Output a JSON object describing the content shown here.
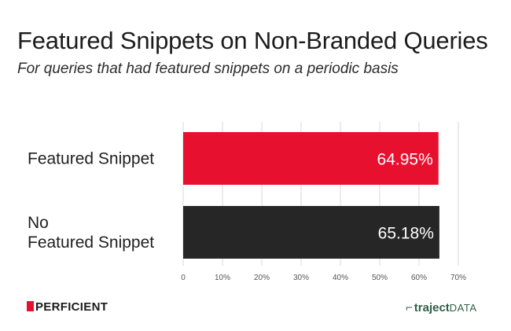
{
  "chart_data": {
    "type": "bar",
    "orientation": "horizontal",
    "title": "Featured Snippets on Non-Branded Queries",
    "subtitle": "For queries that had featured snippets on a periodic basis",
    "categories": [
      "Featured Snippet",
      "No Featured Snippet"
    ],
    "category_lines": [
      [
        "Featured Snippet"
      ],
      [
        "No",
        "Featured Snippet"
      ]
    ],
    "values": [
      64.95,
      65.18
    ],
    "data_labels": [
      "64.95%",
      "65.18%"
    ],
    "colors": [
      "#e8102f",
      "#262626"
    ],
    "xlim": [
      0,
      70
    ],
    "xticks": [
      0,
      10,
      20,
      30,
      40,
      50,
      60,
      70
    ],
    "xtick_labels": [
      "0",
      "10%",
      "20%",
      "30%",
      "40%",
      "50%",
      "60%",
      "70%"
    ],
    "grid": true,
    "xlabel": "",
    "ylabel": ""
  },
  "footer": {
    "left_logo": "PERFICIENT",
    "right_logo_bold": "traject",
    "right_logo_light": "DATA"
  }
}
